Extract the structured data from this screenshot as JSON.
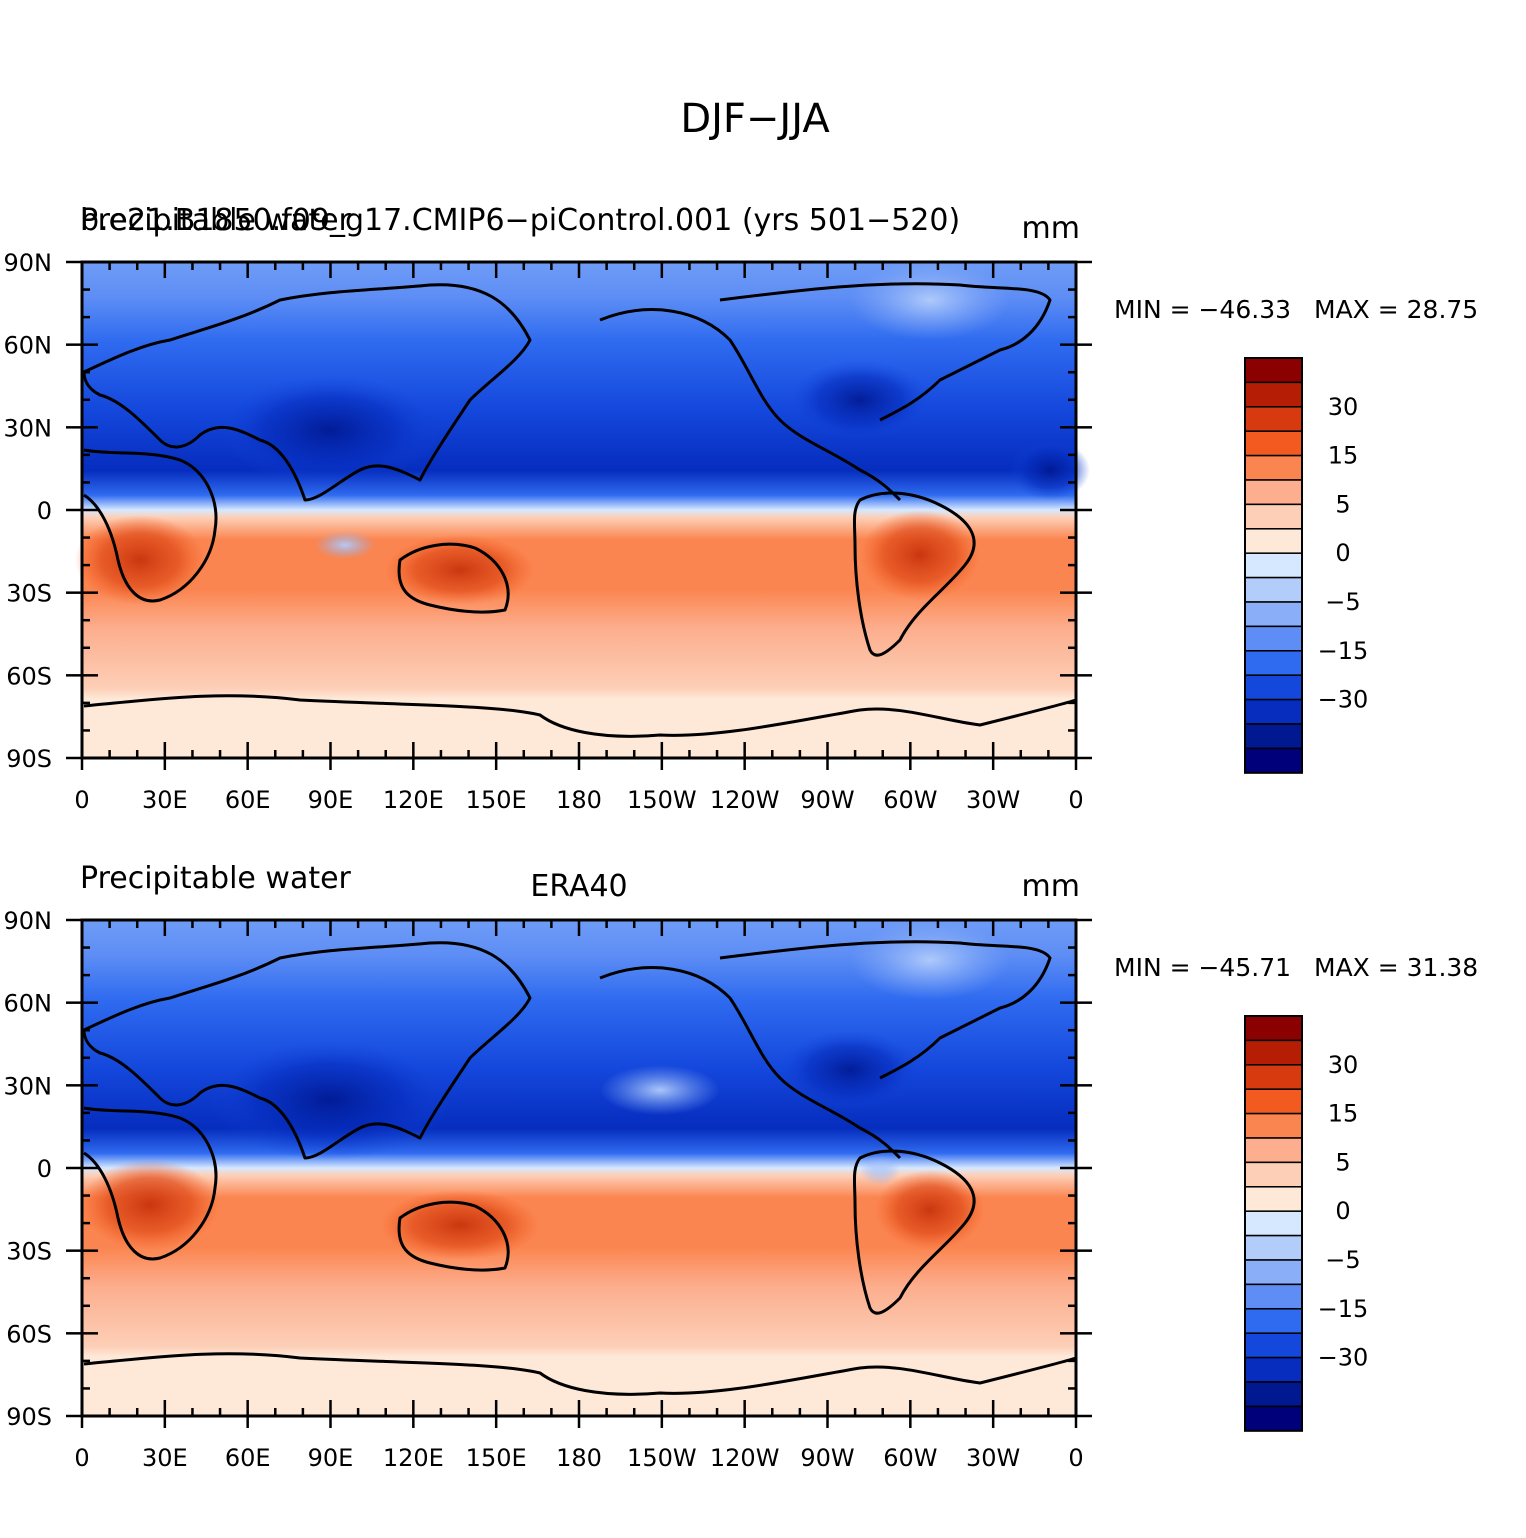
{
  "figure_title": "DJF−JJA",
  "variable": "Precipitable water",
  "units": "mm",
  "x_ticks": [
    "0",
    "30E",
    "60E",
    "90E",
    "120E",
    "150E",
    "180",
    "150W",
    "120W",
    "90W",
    "60W",
    "30W",
    "0"
  ],
  "y_ticks": [
    "90N",
    "60N",
    "30N",
    "0",
    "30S",
    "60S",
    "90S"
  ],
  "colorbar": {
    "labels": [
      "30",
      "15",
      "5",
      "0",
      "−5",
      "−15",
      "−30"
    ],
    "colors": [
      "#8b0000",
      "#b51e05",
      "#d83a10",
      "#f25a20",
      "#fb8550",
      "#fcae8e",
      "#fdcfb7",
      "#fee8d8",
      "#d6e8ff",
      "#b3cdfb",
      "#8aaef8",
      "#5e8ef5",
      "#2f6bf0",
      "#1447dc",
      "#062dbe",
      "#001890",
      "#00007a"
    ]
  },
  "panels": [
    {
      "id": "model",
      "title_left": "Precipitable water",
      "title_overlap": "b.e21.B1850.f09_g17.CMIP6−piControl.001 (yrs 501−520)",
      "title_center": "",
      "units": "mm",
      "min_label": "MIN = −46.33",
      "max_label": "MAX =   28.75"
    },
    {
      "id": "obs",
      "title_left": "Precipitable water",
      "title_overlap": "",
      "title_center": "ERA40",
      "units": "mm",
      "min_label": "MIN = −45.71",
      "max_label": "MAX =   31.38"
    }
  ]
}
